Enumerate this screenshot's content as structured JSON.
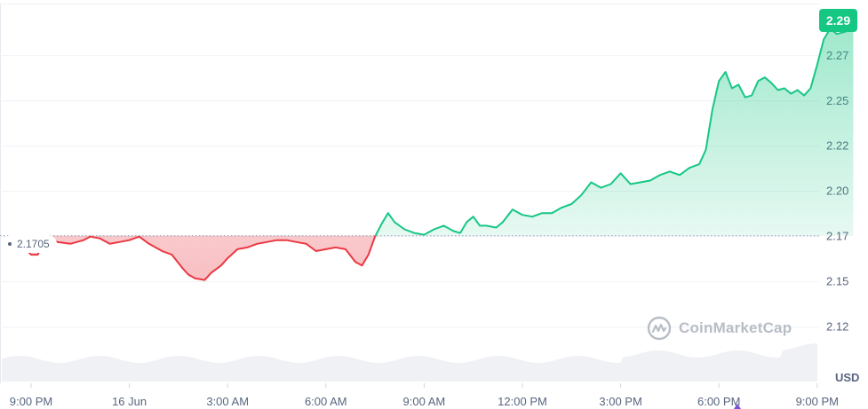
{
  "chart_data": {
    "type": "area",
    "currency": "USD",
    "baseline": {
      "value": 2.1705,
      "label": "2.1705"
    },
    "current_price": {
      "value": 2.29,
      "label": "2.29"
    },
    "x_tick_labels": [
      "9:00 PM",
      "16 Jun",
      "3:00 AM",
      "6:00 AM",
      "9:00 AM",
      "12:00 PM",
      "3:00 PM",
      "6:00 PM",
      "9:00 PM"
    ],
    "y_tick_labels": [
      "2.27",
      "2.25",
      "2.22",
      "2.20",
      "2.17",
      "2.15",
      "2.12"
    ],
    "y_ticks": [
      2.27,
      2.245,
      2.22,
      2.195,
      2.17,
      2.145,
      2.12
    ],
    "ylim": [
      2.1,
      2.295
    ],
    "x_range_hours": [
      -0.5,
      24.3
    ],
    "x_ticks_hours": [
      0,
      3,
      6,
      9,
      12,
      15,
      18,
      21,
      24
    ],
    "colors": {
      "up": "#16c784",
      "down": "#ea3943",
      "grid": "#eff2f5",
      "text": "#58667e",
      "baseline": "#a6b0c3"
    },
    "watermark": "CoinMarketCap",
    "series": [
      {
        "points": [
          [
            -0.2,
            2.164
          ],
          [
            0.0,
            2.16
          ],
          [
            0.2,
            2.16
          ],
          [
            0.35,
            2.165
          ],
          [
            0.55,
            2.169
          ],
          [
            0.8,
            2.167
          ],
          [
            1.2,
            2.166
          ],
          [
            1.6,
            2.168
          ],
          [
            1.8,
            2.17
          ],
          [
            2.1,
            2.169
          ],
          [
            2.4,
            2.166
          ],
          [
            2.7,
            2.167
          ],
          [
            3.0,
            2.168
          ],
          [
            3.3,
            2.17
          ],
          [
            3.6,
            2.166
          ],
          [
            4.0,
            2.162
          ],
          [
            4.3,
            2.16
          ],
          [
            4.6,
            2.153
          ],
          [
            4.8,
            2.149
          ],
          [
            5.0,
            2.147
          ],
          [
            5.3,
            2.146
          ],
          [
            5.5,
            2.15
          ],
          [
            5.8,
            2.154
          ],
          [
            6.0,
            2.158
          ],
          [
            6.3,
            2.163
          ],
          [
            6.6,
            2.164
          ],
          [
            6.9,
            2.166
          ],
          [
            7.2,
            2.167
          ],
          [
            7.5,
            2.168
          ],
          [
            7.8,
            2.168
          ],
          [
            8.1,
            2.167
          ],
          [
            8.4,
            2.166
          ],
          [
            8.7,
            2.162
          ],
          [
            9.0,
            2.163
          ],
          [
            9.3,
            2.164
          ],
          [
            9.6,
            2.163
          ],
          [
            9.9,
            2.156
          ],
          [
            10.1,
            2.154
          ],
          [
            10.3,
            2.16
          ],
          [
            10.5,
            2.17
          ],
          [
            10.7,
            2.177
          ],
          [
            10.9,
            2.183
          ],
          [
            11.1,
            2.178
          ],
          [
            11.4,
            2.174
          ],
          [
            11.7,
            2.172
          ],
          [
            12.0,
            2.171
          ],
          [
            12.3,
            2.174
          ],
          [
            12.6,
            2.176
          ],
          [
            12.9,
            2.173
          ],
          [
            13.1,
            2.172
          ],
          [
            13.3,
            2.178
          ],
          [
            13.5,
            2.181
          ],
          [
            13.7,
            2.176
          ],
          [
            13.9,
            2.176
          ],
          [
            14.2,
            2.175
          ],
          [
            14.4,
            2.178
          ],
          [
            14.7,
            2.185
          ],
          [
            15.0,
            2.182
          ],
          [
            15.3,
            2.181
          ],
          [
            15.6,
            2.183
          ],
          [
            15.9,
            2.183
          ],
          [
            16.2,
            2.186
          ],
          [
            16.5,
            2.188
          ],
          [
            16.8,
            2.193
          ],
          [
            17.1,
            2.2
          ],
          [
            17.4,
            2.197
          ],
          [
            17.7,
            2.199
          ],
          [
            18.0,
            2.205
          ],
          [
            18.3,
            2.199
          ],
          [
            18.6,
            2.2
          ],
          [
            18.9,
            2.201
          ],
          [
            19.2,
            2.204
          ],
          [
            19.5,
            2.206
          ],
          [
            19.8,
            2.204
          ],
          [
            20.1,
            2.208
          ],
          [
            20.4,
            2.21
          ],
          [
            20.6,
            2.218
          ],
          [
            20.8,
            2.24
          ],
          [
            21.0,
            2.256
          ],
          [
            21.2,
            2.261
          ],
          [
            21.4,
            2.252
          ],
          [
            21.6,
            2.254
          ],
          [
            21.8,
            2.247
          ],
          [
            22.0,
            2.248
          ],
          [
            22.2,
            2.256
          ],
          [
            22.4,
            2.258
          ],
          [
            22.6,
            2.255
          ],
          [
            22.8,
            2.251
          ],
          [
            23.0,
            2.252
          ],
          [
            23.2,
            2.249
          ],
          [
            23.4,
            2.251
          ],
          [
            23.6,
            2.248
          ],
          [
            23.8,
            2.252
          ],
          [
            24.0,
            2.265
          ],
          [
            24.2,
            2.279
          ],
          [
            24.4,
            2.285
          ],
          [
            24.6,
            2.282
          ],
          [
            24.8,
            2.283
          ],
          [
            25.0,
            2.284
          ],
          [
            25.1,
            2.29
          ]
        ]
      }
    ]
  }
}
